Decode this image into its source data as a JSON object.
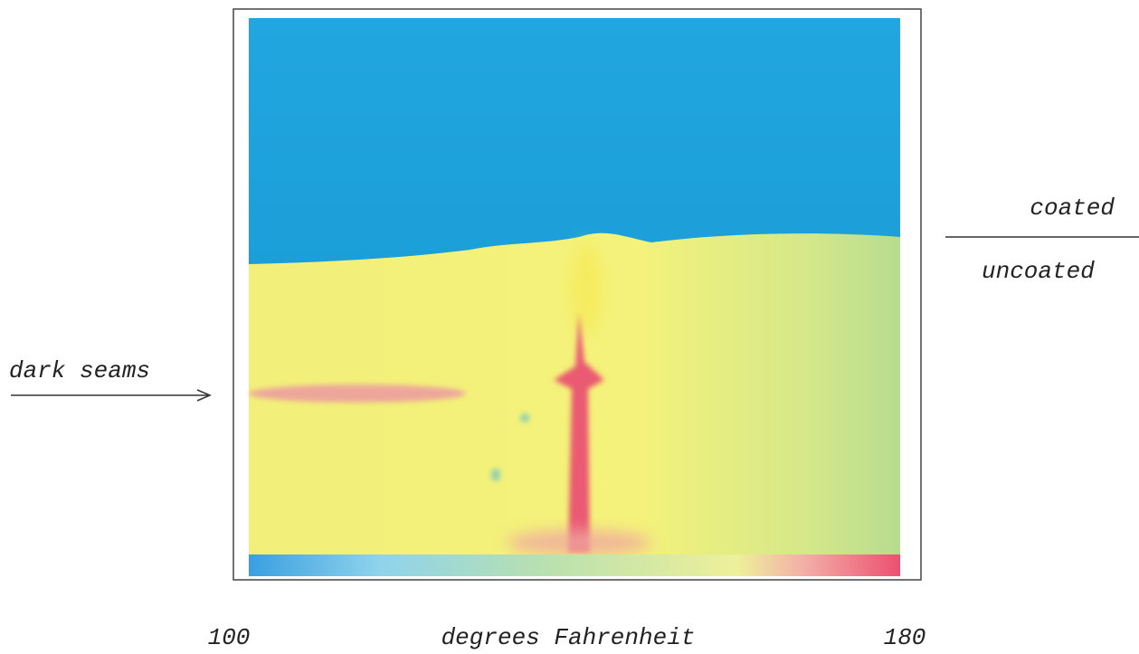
{
  "annotations": {
    "coated": "coated",
    "uncoated": "uncoated",
    "dark_seams": "dark seams"
  },
  "color_scale": {
    "min": 100,
    "label": "degrees Fahrenheit",
    "max": 180
  }
}
